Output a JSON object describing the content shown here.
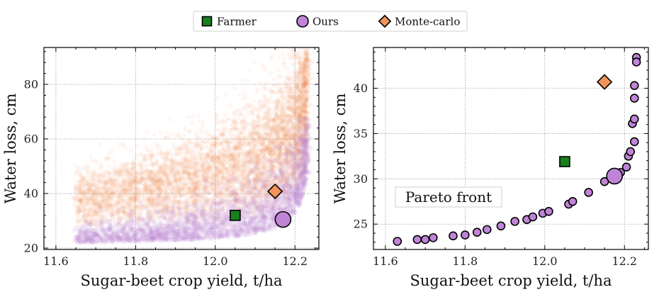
{
  "legend": {
    "placement": "top-center",
    "items": [
      {
        "label": "Farmer",
        "marker": "square",
        "color": "#1a7f1e"
      },
      {
        "label": "Ours",
        "marker": "circle",
        "color": "#c084d6"
      },
      {
        "label": "Monte-carlo",
        "marker": "diamond",
        "color": "#f4935a"
      }
    ]
  },
  "colors": {
    "farmer": "#1a7f1e",
    "ours": "#c084d6",
    "montecarlo": "#f4935a",
    "grid": "#9a9a9a"
  },
  "chart_data": [
    {
      "type": "scatter",
      "xlabel": "Sugar-beet crop yield, t/ha",
      "ylabel": "Water loss, cm",
      "xlim": [
        11.57,
        12.26
      ],
      "ylim": [
        19.5,
        93.5
      ],
      "xticks": [
        11.6,
        11.8,
        12.0,
        12.2
      ],
      "yticks": [
        20,
        40,
        60,
        80
      ],
      "xtick_labels": [
        "11.6",
        "11.8",
        "12.0",
        "12.2"
      ],
      "ytick_labels": [
        "20",
        "40",
        "60",
        "80"
      ],
      "grid": true,
      "clouds": [
        {
          "name": "Ours",
          "color": "#c084d6",
          "x_range": [
            11.62,
            12.23
          ],
          "y_range": [
            22,
            65
          ],
          "lower_edge": "convex rising toward x=12.23"
        },
        {
          "name": "Monte-carlo",
          "color": "#f4935a",
          "x_range": [
            11.62,
            12.23
          ],
          "y_range": [
            24,
            90
          ],
          "lower_edge": "convex rising toward x=12.23"
        }
      ],
      "points": [
        {
          "name": "Farmer",
          "x": 12.05,
          "y": 32.0
        },
        {
          "name": "Ours",
          "x": 12.17,
          "y": 30.5
        },
        {
          "name": "Monte-carlo",
          "x": 12.15,
          "y": 40.8
        }
      ]
    },
    {
      "type": "scatter",
      "xlabel": "Sugar-beet crop yield, t/ha",
      "ylabel": "Water loss, cm",
      "xlim": [
        11.57,
        12.26
      ],
      "ylim": [
        22.2,
        44.5
      ],
      "xticks": [
        11.6,
        11.8,
        12.0,
        12.2
      ],
      "yticks": [
        25,
        30,
        35,
        40
      ],
      "xtick_labels": [
        "11.6",
        "11.8",
        "12.0",
        "12.2"
      ],
      "ytick_labels": [
        "25",
        "30",
        "35",
        "40"
      ],
      "grid": true,
      "annotation": "Pareto front",
      "series": [
        {
          "name": "Pareto front",
          "color": "#c084d6",
          "x": [
            11.63,
            11.68,
            11.7,
            11.72,
            11.77,
            11.8,
            11.83,
            11.855,
            11.89,
            11.925,
            11.955,
            11.97,
            11.995,
            12.01,
            12.06,
            12.07,
            12.11,
            12.15,
            12.19,
            12.205,
            12.21,
            12.215,
            12.225,
            12.22,
            12.225,
            12.225,
            12.225,
            12.23
          ],
          "y": [
            23.1,
            23.3,
            23.3,
            23.5,
            23.7,
            23.8,
            24.1,
            24.4,
            24.8,
            25.3,
            25.5,
            25.8,
            26.2,
            26.4,
            27.2,
            27.5,
            28.5,
            29.7,
            30.7,
            31.3,
            32.5,
            33.0,
            34.1,
            36.1,
            36.6,
            38.9,
            40.3,
            43.4
          ]
        }
      ],
      "points": [
        {
          "name": "Farmer",
          "x": 12.05,
          "y": 31.9
        },
        {
          "name": "Ours",
          "x": 12.175,
          "y": 30.3
        },
        {
          "name": "Monte-carlo",
          "x": 12.15,
          "y": 40.7
        },
        {
          "name": "Ours-extra",
          "x": 12.23,
          "y": 42.9
        }
      ]
    }
  ]
}
